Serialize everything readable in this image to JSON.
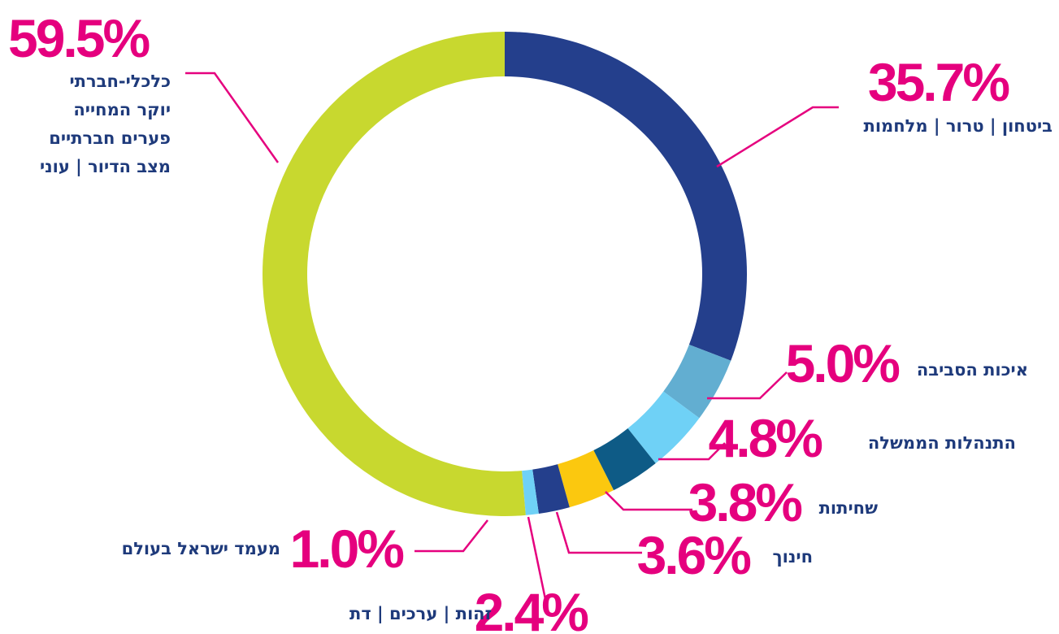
{
  "chart_data": {
    "type": "donut",
    "categories": [
      "ביטחון | טרור | מלחמות",
      "איכות הסביבה",
      "התנהלות הממשלה",
      "שחיתות",
      "חינוך",
      "זהות | ערכים | דת",
      "מעמד ישראל בעולם",
      [
        "כלכלי-חברתי",
        "יוקר המחייה",
        "פערים חברתיים",
        "מצב הדיור | עוני"
      ]
    ],
    "values": [
      35.7,
      5.0,
      4.8,
      3.8,
      3.6,
      2.4,
      1.0,
      59.5
    ],
    "value_labels": [
      "35.7%",
      "5.0%",
      "4.8%",
      "3.8%",
      "3.6%",
      "2.4%",
      "1.0%",
      "59.5%"
    ],
    "colors": [
      "#243f8c",
      "#62aed1",
      "#6fd1f6",
      "#0e5b86",
      "#fbc80f",
      "#243f8c",
      "#6fd1f6",
      "#c8d82f"
    ]
  }
}
